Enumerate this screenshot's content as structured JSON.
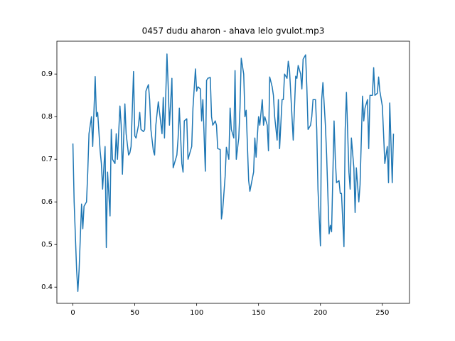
{
  "chart_data": {
    "type": "line",
    "title": "0457 dudu aharon - ahava lelo gvulot.mp3",
    "x": [
      0,
      1,
      3,
      4,
      5,
      7,
      8,
      9,
      11,
      12,
      13,
      15,
      16,
      18,
      19,
      20,
      22,
      23,
      24,
      26,
      27,
      28,
      30,
      31,
      32,
      34,
      35,
      36,
      38,
      39,
      40,
      42,
      43,
      45,
      46,
      47,
      49,
      50,
      51,
      53,
      54,
      55,
      57,
      58,
      59,
      61,
      62,
      63,
      65,
      66,
      67,
      69,
      70,
      72,
      73,
      74,
      76,
      77,
      78,
      80,
      81,
      82,
      84,
      85,
      86,
      88,
      89,
      90,
      92,
      93,
      94,
      96,
      97,
      99,
      100,
      101,
      103,
      104,
      105,
      107,
      108,
      109,
      111,
      112,
      113,
      115,
      116,
      117,
      119,
      120,
      121,
      123,
      124,
      126,
      127,
      128,
      130,
      131,
      132,
      134,
      135,
      136,
      138,
      139,
      140,
      142,
      143,
      144,
      146,
      147,
      148,
      150,
      151,
      153,
      154,
      155,
      157,
      158,
      159,
      161,
      162,
      163,
      165,
      166,
      167,
      169,
      170,
      171,
      173,
      174,
      175,
      177,
      178,
      180,
      181,
      182,
      184,
      185,
      186,
      188,
      189,
      190,
      192,
      193,
      194,
      196,
      197,
      198,
      200,
      201,
      202,
      204,
      205,
      207,
      208,
      209,
      211,
      212,
      213,
      215,
      216,
      217,
      219,
      220,
      221,
      223,
      224,
      225,
      227,
      228,
      229,
      231,
      232,
      234,
      235,
      236,
      238,
      239,
      240,
      242,
      243,
      244,
      246,
      247,
      248,
      250,
      251,
      252,
      254,
      255,
      256,
      258,
      259
    ],
    "series": [
      {
        "color": "#1f77b4",
        "values": [
          0.737,
          0.6,
          0.44,
          0.39,
          0.44,
          0.595,
          0.537,
          0.59,
          0.6,
          0.67,
          0.76,
          0.8,
          0.73,
          0.894,
          0.8,
          0.81,
          0.72,
          0.69,
          0.63,
          0.73,
          0.493,
          0.67,
          0.567,
          0.77,
          0.7,
          0.69,
          0.76,
          0.7,
          0.825,
          0.78,
          0.665,
          0.83,
          0.76,
          0.71,
          0.715,
          0.73,
          0.906,
          0.755,
          0.75,
          0.78,
          0.81,
          0.77,
          0.765,
          0.77,
          0.86,
          0.875,
          0.84,
          0.77,
          0.72,
          0.71,
          0.78,
          0.835,
          0.81,
          0.76,
          0.845,
          0.75,
          0.947,
          0.87,
          0.78,
          0.89,
          0.68,
          0.69,
          0.71,
          0.75,
          0.82,
          0.69,
          0.67,
          0.79,
          0.795,
          0.7,
          0.71,
          0.73,
          0.82,
          0.912,
          0.86,
          0.87,
          0.865,
          0.79,
          0.84,
          0.672,
          0.885,
          0.89,
          0.892,
          0.8,
          0.78,
          0.79,
          0.78,
          0.725,
          0.723,
          0.56,
          0.58,
          0.66,
          0.728,
          0.7,
          0.82,
          0.77,
          0.75,
          0.908,
          0.7,
          0.75,
          0.82,
          0.937,
          0.9,
          0.8,
          0.815,
          0.65,
          0.625,
          0.64,
          0.67,
          0.75,
          0.705,
          0.8,
          0.78,
          0.84,
          0.78,
          0.8,
          0.78,
          0.72,
          0.893,
          0.87,
          0.85,
          0.8,
          0.745,
          0.84,
          0.725,
          0.84,
          0.84,
          0.9,
          0.89,
          0.93,
          0.91,
          0.8,
          0.745,
          0.895,
          0.89,
          0.92,
          0.9,
          0.865,
          0.935,
          0.945,
          0.87,
          0.77,
          0.78,
          0.8,
          0.84,
          0.84,
          0.77,
          0.63,
          0.497,
          0.84,
          0.88,
          0.78,
          0.71,
          0.525,
          0.545,
          0.53,
          0.79,
          0.7,
          0.645,
          0.65,
          0.62,
          0.62,
          0.495,
          0.77,
          0.857,
          0.67,
          0.63,
          0.75,
          0.68,
          0.575,
          0.68,
          0.6,
          0.64,
          0.848,
          0.79,
          0.82,
          0.84,
          0.725,
          0.85,
          0.85,
          0.915,
          0.85,
          0.855,
          0.893,
          0.86,
          0.825,
          0.76,
          0.69,
          0.73,
          0.645,
          0.832,
          0.645,
          0.76
        ]
      }
    ],
    "xlim": [
      -12.95,
      271.95
    ],
    "ylim": [
      0.362,
      0.977
    ],
    "xticks": [
      0,
      50,
      100,
      150,
      200,
      250
    ],
    "yticks": [
      0.4,
      0.5,
      0.6,
      0.7,
      0.8,
      0.9
    ]
  }
}
